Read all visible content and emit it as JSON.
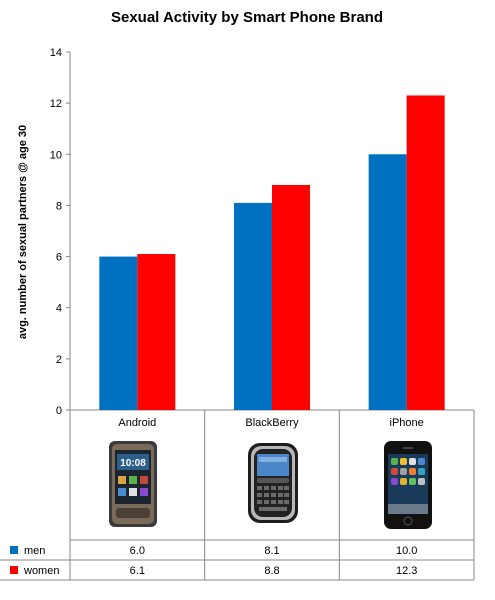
{
  "chart_data": {
    "type": "bar",
    "title": "Sexual Activity by Smart Phone Brand",
    "ylabel": "avg. number of sexual partners @ age 30",
    "xlabel": "",
    "ylim": [
      0,
      14
    ],
    "yticks": [
      0,
      2,
      4,
      6,
      8,
      10,
      12,
      14
    ],
    "categories": [
      "Android",
      "BlackBerry",
      "iPhone"
    ],
    "series": [
      {
        "name": "men",
        "color": "#0070C0",
        "values": [
          6.0,
          8.1,
          10.0
        ],
        "labels": [
          "6.0",
          "8.1",
          "10.0"
        ]
      },
      {
        "name": "women",
        "color": "#FF0000",
        "values": [
          6.1,
          8.8,
          12.3
        ],
        "labels": [
          "6.1",
          "8.8",
          "12.3"
        ]
      }
    ],
    "grid": false,
    "legend": "data-table rows below chart"
  },
  "phone_icons": [
    "android-phone-icon",
    "blackberry-phone-icon",
    "iphone-icon"
  ]
}
